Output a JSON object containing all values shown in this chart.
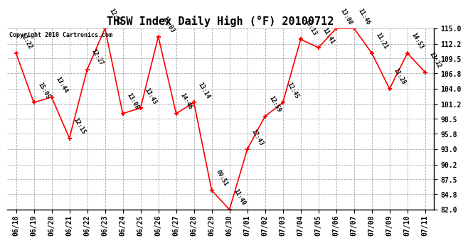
{
  "title": "THSW Index Daily High (°F) 20100712",
  "copyright": "Copyright 2010 Cartronics.com",
  "x_labels": [
    "06/18",
    "06/19",
    "06/20",
    "06/21",
    "06/22",
    "06/23",
    "06/24",
    "06/25",
    "06/26",
    "06/27",
    "06/28",
    "06/29",
    "06/30",
    "07/01",
    "07/02",
    "07/03",
    "07/04",
    "07/05",
    "07/06",
    "07/07",
    "07/08",
    "07/09",
    "07/10",
    "07/11"
  ],
  "y_values": [
    110.5,
    101.5,
    102.5,
    95.0,
    107.5,
    115.0,
    99.5,
    100.5,
    113.5,
    99.5,
    101.5,
    85.5,
    82.0,
    93.0,
    99.0,
    101.5,
    113.0,
    111.5,
    115.0,
    115.0,
    110.5,
    104.0,
    110.5,
    107.0
  ],
  "time_labels": [
    "12:22",
    "15:05",
    "13:44",
    "12:15",
    "12:27",
    "12:13",
    "13:08",
    "13:43",
    "13:03",
    "14:46",
    "13:14",
    "09:51",
    "11:49",
    "12:43",
    "12:59",
    "12:45",
    "13:13",
    "11:41",
    "13:08",
    "11:46",
    "11:21",
    "11:28",
    "14:53",
    "13:32"
  ],
  "ylim": [
    82.0,
    115.0
  ],
  "yticks": [
    82.0,
    84.8,
    87.5,
    90.2,
    93.0,
    95.8,
    98.5,
    101.2,
    104.0,
    106.8,
    109.5,
    112.2,
    115.0
  ],
  "line_color": "red",
  "marker_color": "red",
  "bg_color": "white",
  "grid_color": "#aaaaaa",
  "title_fontsize": 11,
  "tick_fontsize": 7,
  "annot_fontsize": 6,
  "copyright_fontsize": 6
}
